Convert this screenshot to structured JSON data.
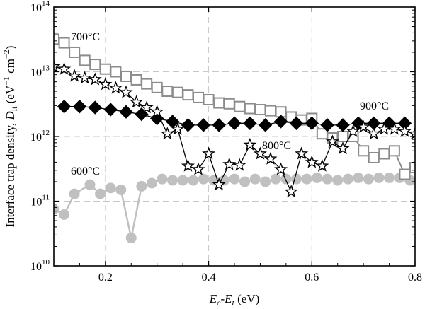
{
  "chart_data": {
    "type": "line",
    "title": "",
    "xlabel": "E_c-E_t (eV)",
    "ylabel": "Interface trap density, D_it (eV^-1 cm^-2)",
    "xlim": [
      0.1,
      0.8
    ],
    "ylim": [
      10000000000,
      100000000000000
    ],
    "y_scale": "log",
    "grid": true,
    "x_ticks": [
      "0.2",
      "0.4",
      "0.6",
      "0.8"
    ],
    "x_tick_values": [
      0.2,
      0.4,
      0.6,
      0.8
    ],
    "y_ticks": [
      {
        "base": "10",
        "exp": "10",
        "value": 10000000000
      },
      {
        "base": "10",
        "exp": "11",
        "value": 100000000000
      },
      {
        "base": "10",
        "exp": "12",
        "value": 1000000000000
      },
      {
        "base": "10",
        "exp": "13",
        "value": 10000000000000
      },
      {
        "base": "10",
        "exp": "14",
        "value": 100000000000000
      }
    ],
    "series": [
      {
        "name": "700°C",
        "marker": "open-square",
        "color": "#8c8c8c",
        "x": [
          0.1,
          0.12,
          0.14,
          0.16,
          0.18,
          0.2,
          0.22,
          0.24,
          0.26,
          0.28,
          0.3,
          0.32,
          0.34,
          0.36,
          0.38,
          0.4,
          0.42,
          0.44,
          0.46,
          0.48,
          0.5,
          0.52,
          0.54,
          0.56,
          0.58,
          0.6,
          0.62,
          0.64,
          0.66,
          0.68,
          0.7,
          0.72,
          0.74,
          0.76,
          0.78,
          0.8
        ],
        "y": [
          32000000000000.0,
          28000000000000.0,
          20000000000000.0,
          15000000000000.0,
          13000000000000.0,
          11000000000000.0,
          10000000000000.0,
          8500000000000.0,
          7500000000000.0,
          6500000000000.0,
          5700000000000.0,
          5000000000000.0,
          4800000000000.0,
          4400000000000.0,
          4000000000000.0,
          3700000000000.0,
          3300000000000.0,
          3200000000000.0,
          2900000000000.0,
          2700000000000.0,
          2600000000000.0,
          2500000000000.0,
          2400000000000.0,
          2000000000000.0,
          1800000000000.0,
          1900000000000.0,
          1100000000000.0,
          950000000000.0,
          1000000000000.0,
          1000000000000.0,
          600000000000.0,
          470000000000.0,
          540000000000.0,
          600000000000.0,
          260000000000.0,
          330000000000.0
        ]
      },
      {
        "name": "800°C",
        "marker": "open-star",
        "color": "#000000",
        "x": [
          0.1,
          0.12,
          0.14,
          0.16,
          0.18,
          0.2,
          0.22,
          0.24,
          0.26,
          0.28,
          0.3,
          0.32,
          0.34,
          0.36,
          0.38,
          0.4,
          0.42,
          0.44,
          0.46,
          0.48,
          0.5,
          0.52,
          0.54,
          0.56,
          0.58,
          0.6,
          0.62,
          0.64,
          0.66,
          0.68,
          0.7,
          0.72,
          0.74,
          0.76,
          0.78,
          0.8
        ],
        "y": [
          12000000000000.0,
          11000000000000.0,
          8600000000000.0,
          8000000000000.0,
          7600000000000.0,
          6400000000000.0,
          5600000000000.0,
          4800000000000.0,
          3400000000000.0,
          2800000000000.0,
          2400000000000.0,
          1100000000000.0,
          1300000000000.0,
          350000000000.0,
          310000000000.0,
          540000000000.0,
          180000000000.0,
          370000000000.0,
          360000000000.0,
          740000000000.0,
          540000000000.0,
          450000000000.0,
          310000000000.0,
          140000000000.0,
          540000000000.0,
          400000000000.0,
          350000000000.0,
          830000000000.0,
          650000000000.0,
          1200000000000.0,
          1400000000000.0,
          1100000000000.0,
          1300000000000.0,
          1300000000000.0,
          1200000000000.0,
          1100000000000.0
        ]
      },
      {
        "name": "900°C",
        "marker": "filled-diamond",
        "color": "#000000",
        "x": [
          0.12,
          0.15,
          0.18,
          0.21,
          0.24,
          0.27,
          0.3,
          0.33,
          0.36,
          0.39,
          0.42,
          0.45,
          0.48,
          0.51,
          0.54,
          0.57,
          0.6,
          0.63,
          0.66,
          0.69,
          0.72,
          0.75,
          0.78
        ],
        "y": [
          2900000000000.0,
          2900000000000.0,
          2800000000000.0,
          2600000000000.0,
          2400000000000.0,
          2200000000000.0,
          1900000000000.0,
          1700000000000.0,
          1500000000000.0,
          1500000000000.0,
          1500000000000.0,
          1600000000000.0,
          1600000000000.0,
          1500000000000.0,
          1700000000000.0,
          1600000000000.0,
          1600000000000.0,
          1500000000000.0,
          1500000000000.0,
          1600000000000.0,
          1600000000000.0,
          1600000000000.0,
          1600000000000.0
        ]
      },
      {
        "name": "600°C",
        "marker": "filled-circle",
        "color": "#c0c0c0",
        "x": [
          0.1,
          0.12,
          0.14,
          0.17,
          0.19,
          0.21,
          0.23,
          0.25,
          0.27,
          0.29,
          0.31,
          0.33,
          0.35,
          0.37,
          0.39,
          0.41,
          0.43,
          0.45,
          0.47,
          0.49,
          0.51,
          0.53,
          0.55,
          0.57,
          0.59,
          0.61,
          0.63,
          0.65,
          0.67,
          0.69,
          0.71,
          0.73,
          0.75,
          0.77,
          0.79
        ],
        "y": [
          75000000000.0,
          62000000000.0,
          130000000000.0,
          180000000000.0,
          130000000000.0,
          160000000000.0,
          150000000000.0,
          27000000000.0,
          170000000000.0,
          190000000000.0,
          220000000000.0,
          210000000000.0,
          210000000000.0,
          210000000000.0,
          220000000000.0,
          210000000000.0,
          210000000000.0,
          220000000000.0,
          200000000000.0,
          220000000000.0,
          200000000000.0,
          220000000000.0,
          220000000000.0,
          220000000000.0,
          220000000000.0,
          230000000000.0,
          220000000000.0,
          210000000000.0,
          220000000000.0,
          230000000000.0,
          220000000000.0,
          230000000000.0,
          230000000000.0,
          230000000000.0,
          210000000000.0
        ]
      }
    ],
    "annotations": [
      "700°C",
      "800°C",
      "900°C",
      "600°C"
    ]
  }
}
